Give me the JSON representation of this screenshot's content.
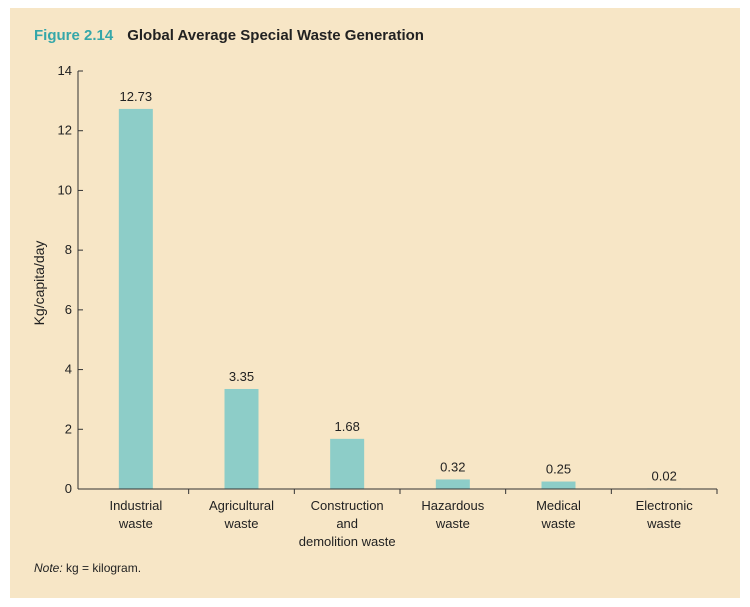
{
  "figure_number": "Figure 2.14",
  "note_label": "Note:",
  "note_text": " kg = kilogram.",
  "colors": {
    "bar": "#8dcdc8",
    "figure_number": "#35a7a9",
    "background": "#f7e6c6",
    "axis": "#333333"
  },
  "chart_data": {
    "type": "bar",
    "title": "Global Average Special Waste Generation",
    "xlabel": "",
    "ylabel": "Kg/capita/day",
    "ylim": [
      0,
      14
    ],
    "yticks": [
      0,
      2,
      4,
      6,
      8,
      10,
      12,
      14
    ],
    "categories": [
      [
        "Industrial",
        "waste"
      ],
      [
        "Agricultural",
        "waste"
      ],
      [
        "Construction",
        "and",
        "demolition waste"
      ],
      [
        "Hazardous",
        "waste"
      ],
      [
        "Medical",
        "waste"
      ],
      [
        "Electronic",
        "waste"
      ]
    ],
    "values": [
      12.73,
      3.35,
      1.68,
      0.32,
      0.25,
      0.02
    ],
    "value_labels": [
      "12.73",
      "3.35",
      "1.68",
      "0.32",
      "0.25",
      "0.02"
    ],
    "grid": false
  }
}
